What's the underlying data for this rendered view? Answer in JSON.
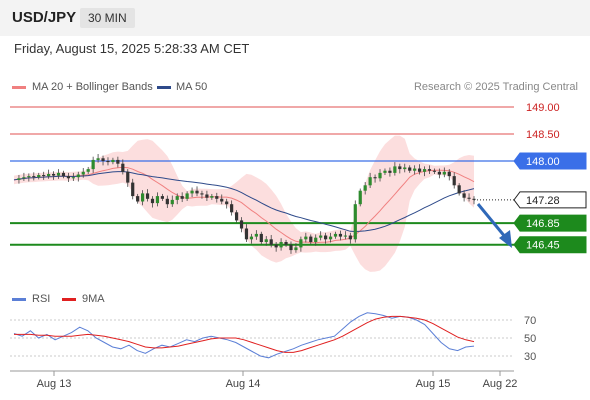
{
  "header": {
    "pair": "USD/JPY",
    "timeframe": "30 MIN"
  },
  "timestamp": "Friday, August 15, 2025 5:28:33 AM CET",
  "legend_main": [
    {
      "label": "MA 20 + Bollinger Bands",
      "color": "#f08080"
    },
    {
      "label": "MA 50",
      "color": "#2e4a8a"
    }
  ],
  "legend_rsi": [
    {
      "label": "RSI",
      "color": "#5b7fd6"
    },
    {
      "label": "9MA",
      "color": "#e02020"
    }
  ],
  "research": "Research © 2025 Trading Central",
  "chart_data": {
    "type": "candlestick",
    "x_ticks": [
      "Aug 13",
      "Aug 14",
      "Aug 15",
      "Aug 22"
    ],
    "y_ticks": [
      "149.00",
      "148.50",
      "148.00",
      "147.28",
      "146.85",
      "146.45"
    ],
    "price_range": [
      146.4,
      149.1
    ],
    "levels": [
      {
        "price": 149.0,
        "label": "149.00",
        "kind": "resistance-thin",
        "color": "#e05050"
      },
      {
        "price": 148.5,
        "label": "148.50",
        "kind": "resistance-thin",
        "color": "#e05050"
      },
      {
        "price": 148.0,
        "label": "148.00",
        "kind": "pivot",
        "color": "#3a6fe8"
      },
      {
        "price": 147.28,
        "label": "147.28",
        "kind": "last",
        "color": "#222222"
      },
      {
        "price": 146.85,
        "label": "146.85",
        "kind": "support",
        "color": "#1d8a1d"
      },
      {
        "price": 146.45,
        "label": "146.45",
        "kind": "support",
        "color": "#1d8a1d"
      }
    ],
    "close_path": [
      147.65,
      147.68,
      147.7,
      147.72,
      147.7,
      147.74,
      147.72,
      147.76,
      147.73,
      147.78,
      147.72,
      147.68,
      147.7,
      147.75,
      147.8,
      147.85,
      148.02,
      148.05,
      148.0,
      147.98,
      148.02,
      147.95,
      147.8,
      147.6,
      147.35,
      147.25,
      147.4,
      147.3,
      147.22,
      147.35,
      147.3,
      147.2,
      147.28,
      147.35,
      147.3,
      147.4,
      147.45,
      147.4,
      147.38,
      147.32,
      147.35,
      147.3,
      147.25,
      147.2,
      147.05,
      146.9,
      146.75,
      146.55,
      146.6,
      146.65,
      146.5,
      146.55,
      146.45,
      146.4,
      146.5,
      146.45,
      146.35,
      146.4,
      146.55,
      146.6,
      146.5,
      146.58,
      146.62,
      146.55,
      146.6,
      146.65,
      146.6,
      146.62,
      146.55,
      147.2,
      147.45,
      147.55,
      147.7,
      147.68,
      147.78,
      147.82,
      147.78,
      147.9,
      147.85,
      147.88,
      147.82,
      147.86,
      147.8,
      147.85,
      147.82,
      147.8,
      147.75,
      147.8,
      147.72,
      147.55,
      147.4,
      147.32,
      147.3,
      147.28
    ]
  },
  "rsi_data": {
    "ticks": [
      "70",
      "50",
      "30"
    ],
    "rsi": [
      55,
      52,
      58,
      50,
      54,
      48,
      52,
      56,
      62,
      58,
      50,
      45,
      40,
      38,
      42,
      36,
      33,
      38,
      42,
      40,
      44,
      48,
      46,
      50,
      52,
      50,
      48,
      45,
      40,
      35,
      30,
      28,
      32,
      35,
      38,
      42,
      45,
      48,
      50,
      52,
      60,
      68,
      74,
      78,
      77,
      75,
      72,
      74,
      73,
      70,
      65,
      55,
      45,
      38,
      36,
      40,
      41
    ],
    "ma9": [
      54,
      54,
      54,
      53,
      53,
      52,
      52,
      52,
      53,
      54,
      53,
      52,
      50,
      48,
      46,
      43,
      40,
      39,
      39,
      40,
      41,
      43,
      45,
      47,
      49,
      50,
      50,
      50,
      48,
      45,
      42,
      39,
      36,
      34,
      34,
      36,
      39,
      42,
      45,
      48,
      52,
      57,
      62,
      67,
      71,
      73,
      74,
      74,
      73,
      72,
      70,
      66,
      61,
      56,
      51,
      48,
      46
    ]
  }
}
